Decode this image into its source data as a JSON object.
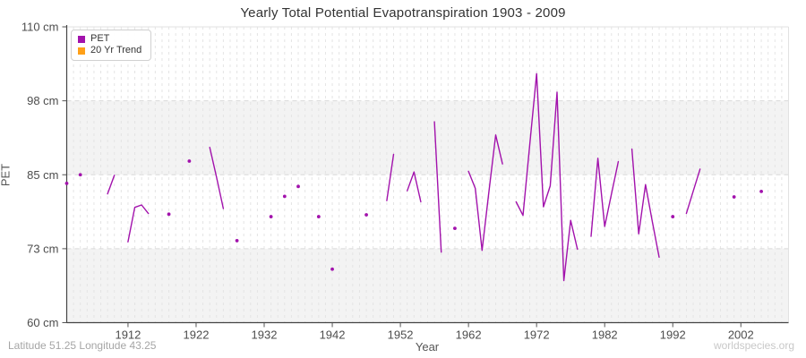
{
  "footer": {
    "left": "Latitude 51.25 Longitude 43.25",
    "right": "worldspecies.org"
  },
  "chart_data": {
    "type": "line",
    "title": "Yearly Total Potential Evapotranspiration 1903 - 2009",
    "xlabel": "Year",
    "ylabel": "PET",
    "xlim": [
      1903,
      2009
    ],
    "ylim": [
      60,
      110
    ],
    "x_tick_years": [
      1912,
      1922,
      1932,
      1942,
      1952,
      1962,
      1972,
      1982,
      1992,
      2002
    ],
    "y_tick_values": [
      60,
      73,
      85,
      98,
      110
    ],
    "y_tick_labels": [
      "60 cm",
      "73 cm",
      "85 cm",
      "98 cm",
      "110 cm"
    ],
    "grid": true,
    "legend_position": "top-left",
    "series": [
      {
        "name": "PET",
        "color": "#A212AC",
        "points": [
          [
            1903,
            83.6
          ],
          [
            1905,
            85.0
          ],
          [
            1909,
            81.9
          ],
          [
            1910,
            84.9
          ],
          [
            1912,
            74.1
          ],
          [
            1913,
            79.7
          ],
          [
            1914,
            80.1
          ],
          [
            1915,
            78.7
          ],
          [
            1918,
            78.6
          ],
          [
            1921,
            87.4
          ],
          [
            1924,
            89.8
          ],
          [
            1925,
            84.6
          ],
          [
            1926,
            79.5
          ],
          [
            1928,
            74.3
          ],
          [
            1933,
            78.2
          ],
          [
            1935,
            81.5
          ],
          [
            1937,
            83.1
          ],
          [
            1940,
            78.2
          ],
          [
            1942,
            69.4
          ],
          [
            1947,
            78.5
          ],
          [
            1950,
            80.8
          ],
          [
            1951,
            88.6
          ],
          [
            1953,
            82.4
          ],
          [
            1954,
            85.5
          ],
          [
            1955,
            80.6
          ],
          [
            1957,
            94.3
          ],
          [
            1958,
            72.4
          ],
          [
            1960,
            76.3
          ],
          [
            1962,
            85.6
          ],
          [
            1963,
            82.8
          ],
          [
            1964,
            72.7
          ],
          [
            1965,
            82.2
          ],
          [
            1966,
            92.0
          ],
          [
            1967,
            86.9
          ],
          [
            1969,
            80.6
          ],
          [
            1970,
            78.4
          ],
          [
            1971,
            90.4
          ],
          [
            1972,
            102.4
          ],
          [
            1973,
            79.8
          ],
          [
            1974,
            83.2
          ],
          [
            1975,
            99.4
          ],
          [
            1976,
            67.4
          ],
          [
            1977,
            77.6
          ],
          [
            1978,
            72.9
          ],
          [
            1980,
            75.0
          ],
          [
            1981,
            87.9
          ],
          [
            1982,
            76.6
          ],
          [
            1983,
            81.9
          ],
          [
            1984,
            87.3
          ],
          [
            1986,
            89.5
          ],
          [
            1987,
            75.4
          ],
          [
            1988,
            83.4
          ],
          [
            1989,
            77.4
          ],
          [
            1990,
            71.5
          ],
          [
            1992,
            78.2
          ],
          [
            1994,
            78.7
          ],
          [
            1995,
            82.3
          ],
          [
            1996,
            86.0
          ],
          [
            2001,
            81.4
          ],
          [
            2005,
            82.3
          ]
        ]
      },
      {
        "name": "20 Yr Trend",
        "color": "#FFA018",
        "points": []
      }
    ]
  }
}
